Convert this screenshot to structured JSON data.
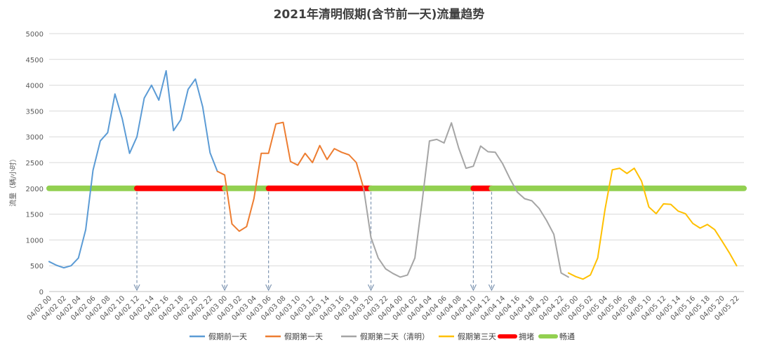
{
  "chart_data": {
    "type": "line",
    "title": "2021年清明假期(含节前一天)流量趋势",
    "ylabel": "流量（辆/小时）",
    "ylim": [
      0,
      5000
    ],
    "yticks": [
      0,
      500,
      1000,
      1500,
      2000,
      2500,
      3000,
      3500,
      4000,
      4500,
      5000
    ],
    "grid": true,
    "legend_position": "bottom",
    "xticks": [
      "04/02 00",
      "04/02 02",
      "04/02 04",
      "04/02 06",
      "04/02 08",
      "04/02 10",
      "04/02 12",
      "04/02 14",
      "04/02 16",
      "04/02 18",
      "04/02 20",
      "04/02 22",
      "04/03 00",
      "04/03 02",
      "04/03 04",
      "04/03 06",
      "04/03 08",
      "04/03 10",
      "04/03 12",
      "04/03 14",
      "04/03 16",
      "04/03 18",
      "04/03 20",
      "04/03 22",
      "04/04 00",
      "04/04 02",
      "04/04 04",
      "04/04 06",
      "04/04 08",
      "04/04 10",
      "04/04 12",
      "04/04 14",
      "04/04 16",
      "04/04 18",
      "04/04 20",
      "04/04 22",
      "04/05 00",
      "04/05 02",
      "04/05 04",
      "04/05 06",
      "04/05 08",
      "04/05 10",
      "04/05 12",
      "04/05 14",
      "04/05 16",
      "04/05 18",
      "04/05 20",
      "04/05 22"
    ],
    "series": [
      {
        "name": "假期前一天",
        "color": "#5b9bd5",
        "start_hour": 0,
        "values": [
          580,
          510,
          460,
          500,
          650,
          1200,
          2350,
          2920,
          3080,
          3830,
          3350,
          2680,
          3000,
          3750,
          4000,
          3710,
          4280,
          3120,
          3330,
          3920,
          4120,
          3580,
          2690,
          2330
        ]
      },
      {
        "name": "假期第一天",
        "color": "#ed7d31",
        "start_hour": 23,
        "values": [
          2330,
          2260,
          1310,
          1170,
          1260,
          1800,
          2680,
          2680,
          3250,
          3280,
          2520,
          2450,
          2680,
          2500,
          2830,
          2560,
          2770,
          2700,
          2650,
          2500,
          2000
        ]
      },
      {
        "name": "假期第二天（清明）",
        "color": "#a5a5a5",
        "start_hour": 43,
        "values": [
          2000,
          1050,
          650,
          440,
          350,
          280,
          320,
          650,
          1750,
          2920,
          2950,
          2880,
          3270,
          2780,
          2390,
          2430,
          2820,
          2710,
          2700,
          2480,
          2190,
          1930,
          1800,
          1760,
          1610,
          1380,
          1110,
          360,
          280
        ]
      },
      {
        "name": "假期第三天",
        "color": "#ffc000",
        "start_hour": 71,
        "values": [
          360,
          290,
          240,
          320,
          650,
          1590,
          2360,
          2390,
          2290,
          2390,
          2140,
          1640,
          1510,
          1700,
          1690,
          1560,
          1510,
          1320,
          1230,
          1300,
          1200,
          980,
          750,
          500
        ]
      }
    ],
    "status_band": {
      "level": 2000,
      "segments": [
        {
          "status": "畅通",
          "from_hour": 0,
          "to_hour": 12,
          "color": "#92d050"
        },
        {
          "status": "拥堵",
          "from_hour": 12,
          "to_hour": 24,
          "color": "#ff0000"
        },
        {
          "status": "畅通",
          "from_hour": 24,
          "to_hour": 30,
          "color": "#92d050"
        },
        {
          "status": "拥堵",
          "from_hour": 30,
          "to_hour": 44,
          "color": "#ff0000"
        },
        {
          "status": "畅通",
          "from_hour": 44,
          "to_hour": 58,
          "color": "#92d050"
        },
        {
          "status": "拥堵",
          "from_hour": 58,
          "to_hour": 60.5,
          "color": "#ff0000"
        },
        {
          "status": "畅通",
          "from_hour": 60.5,
          "to_hour": 95,
          "color": "#92d050"
        }
      ],
      "markers_hour": [
        12,
        24,
        30,
        44,
        58,
        60.5
      ]
    },
    "legend": [
      {
        "label": "假期前一天",
        "color": "#5b9bd5",
        "kind": "line"
      },
      {
        "label": "假期第一天",
        "color": "#ed7d31",
        "kind": "line"
      },
      {
        "label": "假期第二天（清明）",
        "color": "#a5a5a5",
        "kind": "line"
      },
      {
        "label": "假期第三天",
        "color": "#ffc000",
        "kind": "line"
      },
      {
        "label": "拥堵",
        "color": "#ff0000",
        "kind": "band"
      },
      {
        "label": "畅通",
        "color": "#92d050",
        "kind": "band"
      }
    ]
  }
}
